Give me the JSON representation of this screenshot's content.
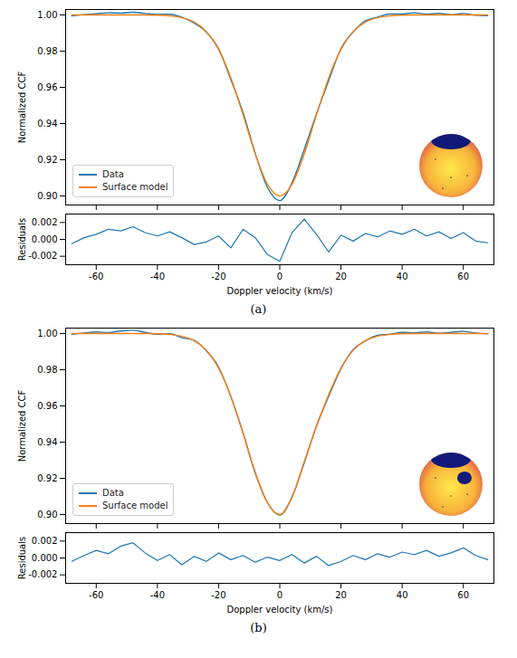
{
  "chart_data": [
    {
      "type": "line",
      "caption": "(a)",
      "ylabel": "Normalized CCF",
      "xlabel": "Doppler velocity (km/s)",
      "x": [
        -68,
        -64,
        -60,
        -56,
        -52,
        -48,
        -44,
        -40,
        -36,
        -32,
        -28,
        -24,
        -20,
        -16,
        -12,
        -8,
        -4,
        0,
        4,
        8,
        12,
        16,
        20,
        24,
        28,
        32,
        36,
        40,
        44,
        48,
        52,
        56,
        60,
        64,
        68
      ],
      "xlim": [
        -70,
        70
      ],
      "xticks": [
        -60,
        -40,
        -20,
        0,
        20,
        40,
        60
      ],
      "ylim": [
        0.895,
        1.003
      ],
      "yticks": [
        {
          "value": 1,
          "label": "1.00"
        },
        0.98,
        0.96,
        0.94,
        0.92,
        {
          "value": 0.9,
          "label": "0.90"
        }
      ],
      "legend": "lower left",
      "series": [
        {
          "name": "Data",
          "color": "#1f77b4",
          "values": [
            0.9995,
            1.0002,
            1.0006,
            1.0012,
            1.001,
            1.0015,
            1.0008,
            1.0003,
            1.0004,
            0.9987,
            0.9955,
            0.9905,
            0.9813,
            0.9643,
            0.946,
            0.9234,
            0.9046,
            0.8974,
            0.9072,
            0.9256,
            0.9454,
            0.9638,
            0.9814,
            0.9906,
            0.9968,
            0.9988,
            1.0005,
            1.0005,
            1.0012,
            1.0004,
            1.0009,
            1.0001,
            1.0008,
            0.9998,
            0.9996
          ]
        },
        {
          "name": "Surface model",
          "color": "#ff7f0e",
          "values": [
            1.0,
            1.0,
            1.0,
            1.0,
            1.0,
            1.0,
            1.0,
            0.9999,
            0.9995,
            0.9985,
            0.9961,
            0.9908,
            0.9809,
            0.9653,
            0.9448,
            0.9232,
            0.9064,
            0.9,
            0.9064,
            0.9232,
            0.9448,
            0.9653,
            0.9809,
            0.9908,
            0.9961,
            0.9985,
            0.9995,
            0.9999,
            1.0,
            1.0,
            1.0,
            1.0,
            1.0,
            1.0,
            1.0
          ]
        }
      ],
      "residuals": {
        "ylabel": "Residuals",
        "ylim": [
          -0.003,
          0.003
        ],
        "yticks": [
          0.002,
          {
            "value": 0,
            "label": "0.000"
          },
          -0.002
        ],
        "color": "#1f77b4",
        "values": [
          -0.0005,
          0.0002,
          0.0006,
          0.0012,
          0.001,
          0.0015,
          0.0008,
          0.0004,
          0.0009,
          0.0002,
          -0.0006,
          -0.0003,
          0.0004,
          -0.001,
          0.0012,
          0.0002,
          -0.0018,
          -0.0026,
          0.0008,
          0.0024,
          0.0006,
          -0.0015,
          0.0005,
          -0.0002,
          0.0007,
          0.0003,
          0.001,
          0.0006,
          0.0012,
          0.0004,
          0.0009,
          0.0001,
          0.0008,
          -0.0002,
          -0.0004
        ]
      }
    },
    {
      "type": "line",
      "caption": "(b)",
      "ylabel": "Normalized CCF",
      "xlabel": "Doppler velocity (km/s)",
      "x": [
        -68,
        -64,
        -60,
        -56,
        -52,
        -48,
        -44,
        -40,
        -36,
        -32,
        -28,
        -24,
        -20,
        -16,
        -12,
        -8,
        -4,
        0,
        4,
        8,
        12,
        16,
        20,
        24,
        28,
        32,
        36,
        40,
        44,
        48,
        52,
        56,
        60,
        64,
        68
      ],
      "xlim": [
        -70,
        70
      ],
      "xticks": [
        -60,
        -40,
        -20,
        0,
        20,
        40,
        60
      ],
      "ylim": [
        0.895,
        1.003
      ],
      "yticks": [
        {
          "value": 1,
          "label": "1.00"
        },
        0.98,
        0.96,
        0.94,
        0.92,
        {
          "value": 0.9,
          "label": "0.90"
        }
      ],
      "legend": "lower left",
      "series": [
        {
          "name": "Data",
          "color": "#1f77b4",
          "values": [
            0.9996,
            1.0003,
            1.0009,
            1.0005,
            1.0014,
            1.0018,
            1.0006,
            0.9996,
            0.9999,
            0.9977,
            0.9963,
            0.9904,
            0.9815,
            0.9651,
            0.9451,
            0.9227,
            0.9065,
            0.8997,
            0.9098,
            0.9286,
            0.949,
            0.9654,
            0.9805,
            0.9911,
            0.9959,
            0.999,
            0.9996,
            1.0006,
            1.0004,
            1.0009,
            1.0002,
            1.0006,
            1.0012,
            1.0003,
            0.9998
          ]
        },
        {
          "name": "Surface model",
          "color": "#ff7f0e",
          "values": [
            1.0,
            1.0,
            1.0,
            1.0,
            1.0,
            1.0,
            1.0,
            0.9999,
            0.9995,
            0.9985,
            0.9961,
            0.9908,
            0.9809,
            0.9653,
            0.9448,
            0.9232,
            0.9064,
            0.9,
            0.9094,
            0.9292,
            0.9488,
            0.9663,
            0.9809,
            0.9908,
            0.9961,
            0.9985,
            0.9995,
            0.9999,
            1.0,
            1.0,
            1.0,
            1.0,
            1.0,
            1.0,
            1.0
          ]
        }
      ],
      "residuals": {
        "ylabel": "Residuals",
        "ylim": [
          -0.003,
          0.003
        ],
        "yticks": [
          0.002,
          {
            "value": 0,
            "label": "0.000"
          },
          -0.002
        ],
        "color": "#1f77b4",
        "values": [
          -0.0004,
          0.0003,
          0.0009,
          0.0005,
          0.0014,
          0.0018,
          0.0006,
          -0.0003,
          0.0004,
          -0.0008,
          0.0002,
          -0.0004,
          0.0006,
          -0.0002,
          0.0003,
          -0.0005,
          0.0001,
          -0.0003,
          0.0004,
          -0.0006,
          0.0002,
          -0.0009,
          -0.0004,
          0.0003,
          -0.0002,
          0.0005,
          0.0001,
          0.0007,
          0.0004,
          0.0009,
          0.0002,
          0.0006,
          0.0012,
          0.0003,
          -0.0002
        ]
      }
    }
  ]
}
